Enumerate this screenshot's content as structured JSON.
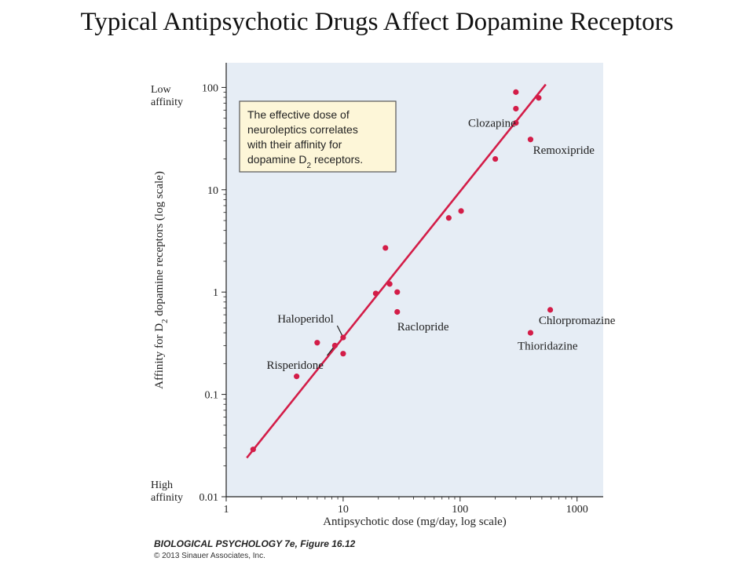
{
  "page": {
    "title": "Typical Antipsychotic Drugs Affect Dopamine Receptors",
    "credit_line1": "BIOLOGICAL PSYCHOLOGY 7e, Figure 16.12",
    "credit_line2": "© 2013 Sinauer Associates, Inc."
  },
  "chart_data": {
    "type": "scatter",
    "xscale": "log",
    "yscale": "log",
    "xlim": [
      1,
      1500
    ],
    "ylim": [
      0.01,
      180
    ],
    "xlabel": "Antipsychotic dose (mg/day, log scale)",
    "ylabel_pre": "Affinity for D",
    "ylabel_sub": "2",
    "ylabel_post": " dopamine receptors (log scale)",
    "x_ticks": [
      {
        "value": 1,
        "label": "1"
      },
      {
        "value": 10,
        "label": "10"
      },
      {
        "value": 100,
        "label": "100"
      },
      {
        "value": 1000,
        "label": "1000"
      }
    ],
    "y_ticks": [
      {
        "value": 0.01,
        "label": "0.01"
      },
      {
        "value": 0.1,
        "label": "0.1"
      },
      {
        "value": 1,
        "label": "1"
      },
      {
        "value": 10,
        "label": "10"
      },
      {
        "value": 100,
        "label": "100"
      }
    ],
    "y_end_labels": {
      "top": [
        "Low",
        "affinity"
      ],
      "bottom": [
        "High",
        "affinity"
      ]
    },
    "colors": {
      "points": "#d31d48",
      "fit_line": "#d31d48",
      "plot_bg": "#e6edf5",
      "callout_bg": "#fdf6d8",
      "callout_border": "#555555"
    },
    "points": [
      {
        "x": 1.7,
        "y": 0.029
      },
      {
        "x": 4,
        "y": 0.15
      },
      {
        "x": 6,
        "y": 0.32
      },
      {
        "x": 8.5,
        "y": 0.3
      },
      {
        "x": 10,
        "y": 0.36
      },
      {
        "x": 10,
        "y": 0.25
      },
      {
        "x": 19,
        "y": 0.97
      },
      {
        "x": 23,
        "y": 2.7
      },
      {
        "x": 25,
        "y": 1.2
      },
      {
        "x": 29,
        "y": 1.0
      },
      {
        "x": 29,
        "y": 0.64
      },
      {
        "x": 80,
        "y": 5.3
      },
      {
        "x": 102,
        "y": 6.2
      },
      {
        "x": 200,
        "y": 20
      },
      {
        "x": 300,
        "y": 90
      },
      {
        "x": 300,
        "y": 62
      },
      {
        "x": 300,
        "y": 45
      },
      {
        "x": 400,
        "y": 31
      },
      {
        "x": 470,
        "y": 79
      },
      {
        "x": 400,
        "y": 0.4
      },
      {
        "x": 590,
        "y": 0.67
      }
    ],
    "fit_line": {
      "x1": 1.5,
      "y1": 0.024,
      "x2": 540,
      "y2": 107
    },
    "annotations": [
      {
        "text": "Clozapine",
        "x": 300,
        "y": 45,
        "align": "right"
      },
      {
        "text": "Remoxipride",
        "x": 420,
        "y": 24.5,
        "align": "left"
      },
      {
        "text": "Raclopride",
        "x": 29,
        "y": 0.46,
        "align": "left"
      },
      {
        "text": "Chlorpromazine",
        "x": 470,
        "y": 0.53,
        "align": "left"
      },
      {
        "text": "Thioridazine",
        "x": 310,
        "y": 0.3,
        "align": "left"
      },
      {
        "text": "Haloperidol",
        "x": 8.3,
        "y": 0.55,
        "align": "right"
      },
      {
        "text": "Risperidone",
        "x": 6.8,
        "y": 0.195,
        "align": "right"
      }
    ],
    "leaders": [
      {
        "from": [
          8.9,
          0.47
        ],
        "to": [
          10,
          0.36
        ]
      },
      {
        "from": [
          7.3,
          0.24
        ],
        "to": [
          8.5,
          0.3
        ]
      }
    ],
    "callout": {
      "lines": [
        "The effective dose of",
        "neuroleptics correlates",
        "with their affinity for"
      ],
      "last_pre": "dopamine D",
      "last_sub": "2",
      "last_post": " receptors."
    }
  }
}
